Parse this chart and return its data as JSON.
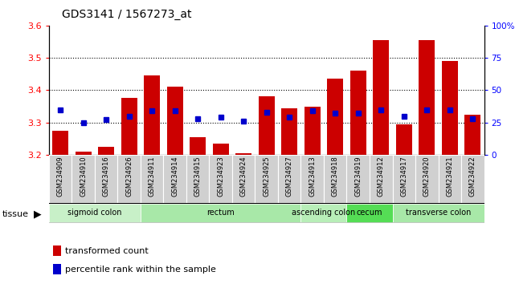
{
  "title": "GDS3141 / 1567273_at",
  "samples": [
    "GSM234909",
    "GSM234910",
    "GSM234916",
    "GSM234926",
    "GSM234911",
    "GSM234914",
    "GSM234915",
    "GSM234923",
    "GSM234924",
    "GSM234925",
    "GSM234927",
    "GSM234913",
    "GSM234918",
    "GSM234919",
    "GSM234912",
    "GSM234917",
    "GSM234920",
    "GSM234921",
    "GSM234922"
  ],
  "transformed_count": [
    3.275,
    3.21,
    3.225,
    3.375,
    3.445,
    3.41,
    3.255,
    3.235,
    3.205,
    3.38,
    3.345,
    3.35,
    3.435,
    3.46,
    3.555,
    3.295,
    3.555,
    3.49,
    3.325
  ],
  "percentile_rank": [
    35,
    25,
    27,
    30,
    34,
    34,
    28,
    29,
    26,
    33,
    29,
    34,
    32,
    32,
    35,
    30,
    35,
    35,
    28
  ],
  "tissue_groups": [
    {
      "label": "sigmoid colon",
      "start": 0,
      "end": 3,
      "color": "#c8f0c8"
    },
    {
      "label": "rectum",
      "start": 4,
      "end": 10,
      "color": "#a8e8a8"
    },
    {
      "label": "ascending colon",
      "start": 11,
      "end": 12,
      "color": "#b8eeb8"
    },
    {
      "label": "cecum",
      "start": 13,
      "end": 14,
      "color": "#55dd55"
    },
    {
      "label": "transverse colon",
      "start": 15,
      "end": 18,
      "color": "#a8e8a8"
    }
  ],
  "y_min": 3.2,
  "y_max": 3.6,
  "y_ticks": [
    3.2,
    3.3,
    3.4,
    3.5,
    3.6
  ],
  "y2_ticks": [
    0,
    25,
    50,
    75,
    100
  ],
  "y2_labels": [
    "0",
    "25",
    "50",
    "75",
    "100%"
  ],
  "bar_color": "#cc0000",
  "dot_color": "#0000cc",
  "bg_color": "#d0d0d0",
  "grid_lines": [
    3.3,
    3.4,
    3.5
  ],
  "legend_items": [
    "transformed count",
    "percentile rank within the sample"
  ],
  "tissue_label": "tissue"
}
